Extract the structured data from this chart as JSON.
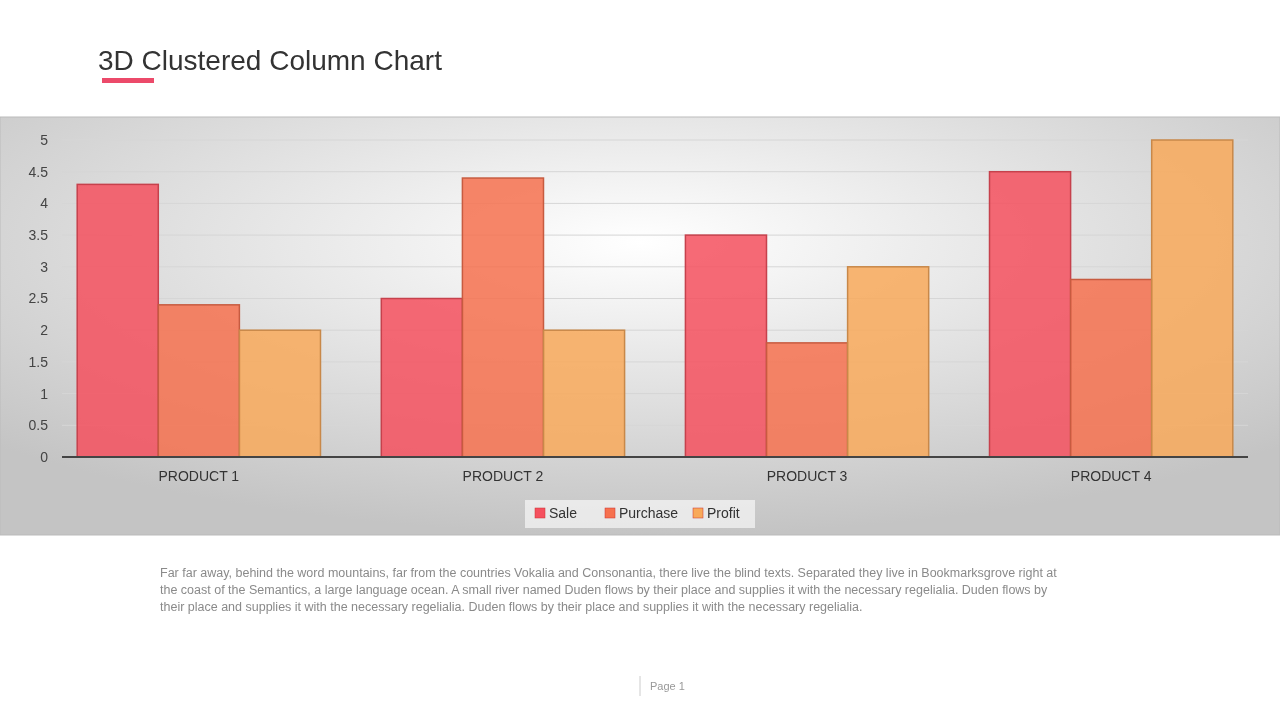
{
  "chart_data": {
    "type": "bar",
    "title": "3D Clustered Column  Chart",
    "categories": [
      "PRODUCT 1",
      "PRODUCT 2",
      "PRODUCT 3",
      "PRODUCT 4"
    ],
    "series": [
      {
        "name": "Sale",
        "color": "#f5505e",
        "values": [
          4.3,
          2.5,
          3.5,
          4.5
        ]
      },
      {
        "name": "Purchase",
        "color": "#f6714f",
        "values": [
          2.4,
          4.4,
          1.8,
          2.8
        ]
      },
      {
        "name": "Profit",
        "color": "#f8a95a",
        "values": [
          2,
          2,
          3,
          5
        ]
      }
    ],
    "ylim": [
      0,
      5
    ],
    "yticks": [
      0,
      0.5,
      1,
      1.5,
      2,
      2.5,
      3,
      3.5,
      4,
      4.5,
      5
    ],
    "grid": "y",
    "legend": "bottom",
    "annotations": [
      "Far far away, behind the word mountains, far from the countries Vokalia and Consonantia, there live the blind texts. Separated they live in Bookmarksgrove right at the coast of the Semantics, a large language ocean. A small river named Duden flows by their place and supplies it with the necessary regelialia. Duden flows by their place and supplies it with the necessary regelialia. Duden flows by their place and supplies it with the necessary regelialia.",
      "Page 1"
    ]
  }
}
